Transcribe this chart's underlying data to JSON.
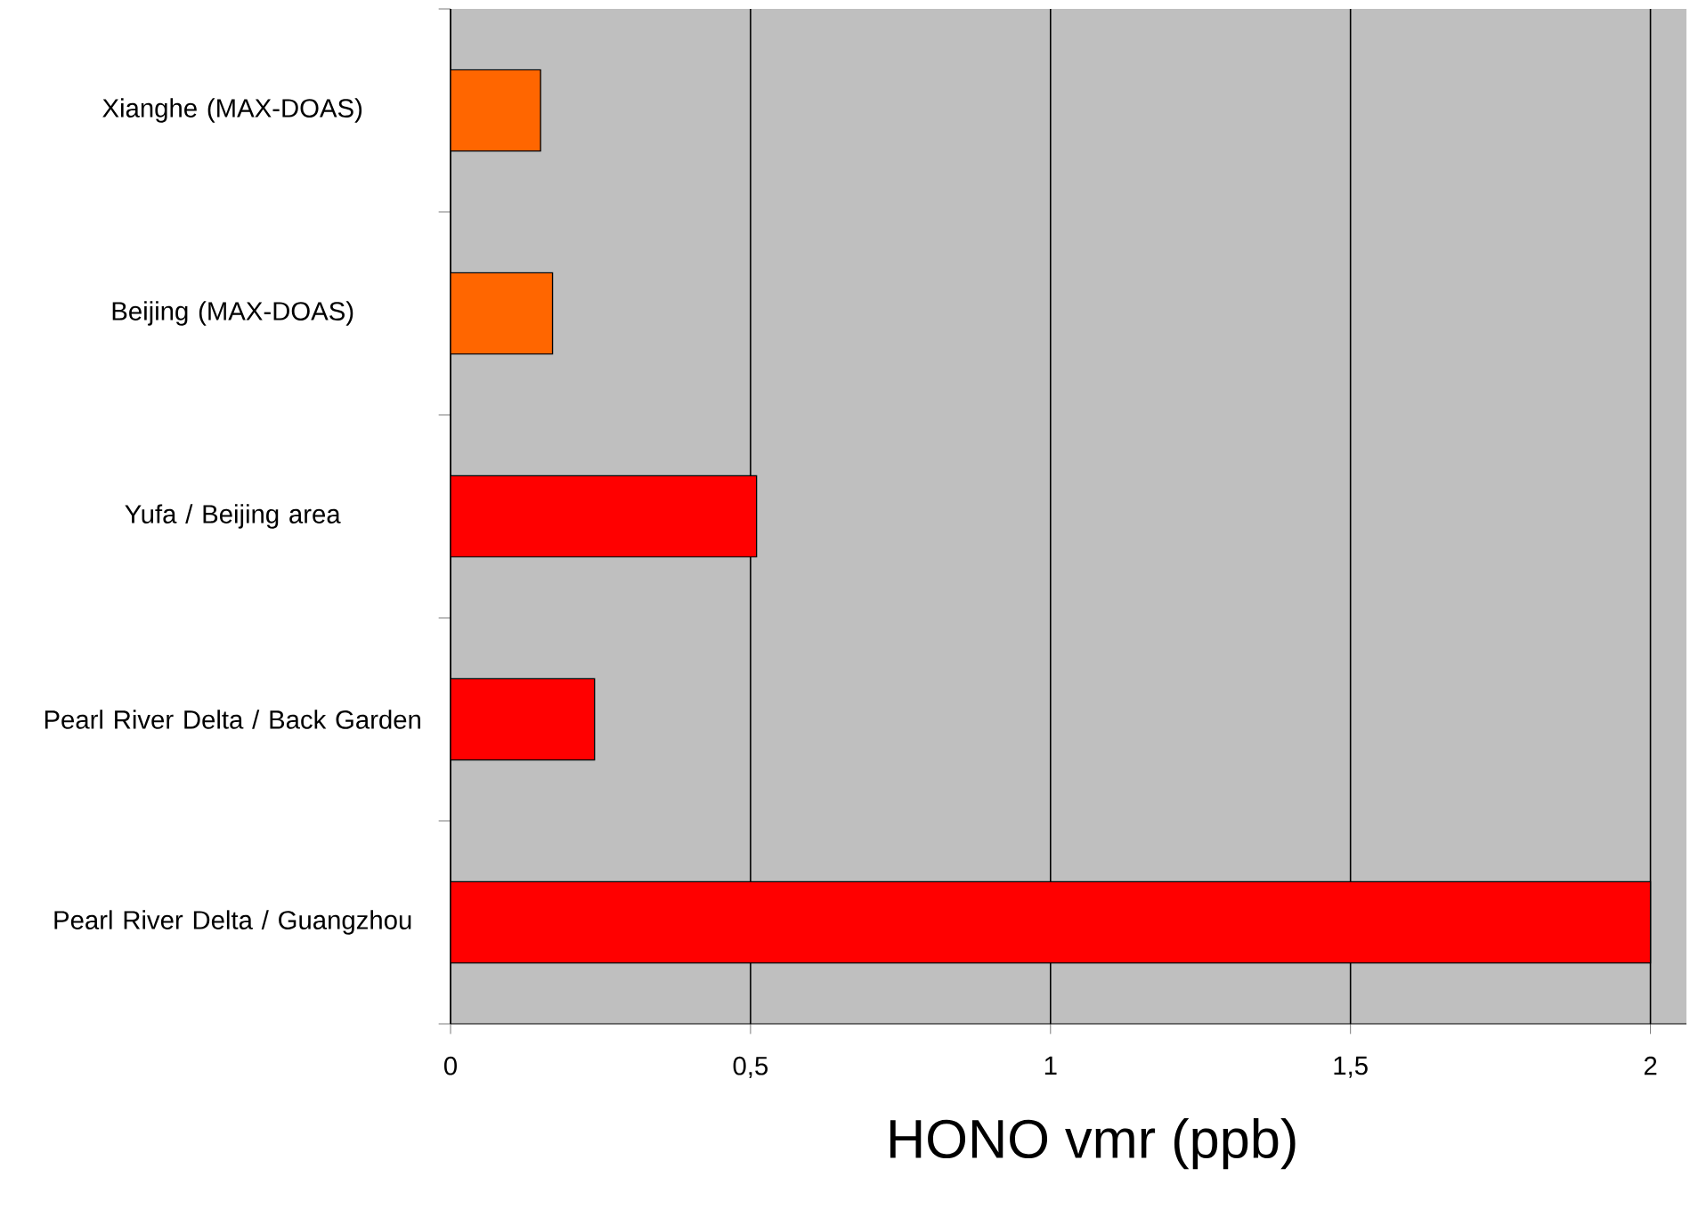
{
  "chart_data": {
    "type": "bar",
    "orientation": "horizontal",
    "categories": [
      "Xianghe (MAX-DOAS)",
      "Beijing (MAX-DOAS)",
      "Yufa / Beijing area",
      "Pearl River Delta / Back Garden",
      "Pearl River Delta / Guangzhou"
    ],
    "values": [
      0.15,
      0.17,
      0.51,
      0.24,
      2.0
    ],
    "colors": [
      "#ff6600",
      "#ff6600",
      "#ff0000",
      "#ff0000",
      "#ff0000"
    ],
    "xlabel": "HONO vmr (ppb)",
    "xlim": [
      0,
      2.06
    ],
    "xticks": [
      0,
      {
        "value": 0.5,
        "label": "0,5"
      },
      1,
      {
        "value": 1.5,
        "label": "1,5"
      },
      2
    ],
    "grid": "x"
  }
}
